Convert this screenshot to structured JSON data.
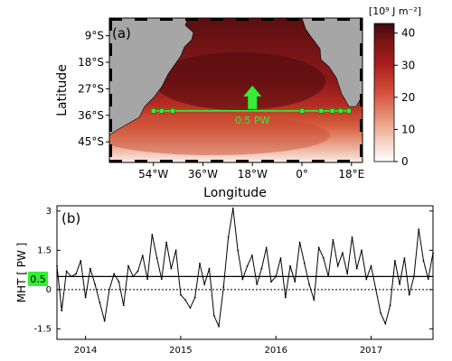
{
  "chart_data": [
    {
      "type": "heatmap",
      "panel_label": "(a)",
      "xlabel": "Longitude",
      "ylabel": "Latitude",
      "x_ticks": [
        "54°W",
        "36°W",
        "18°W",
        "0°",
        "18°E"
      ],
      "x_tick_values": [
        -54,
        -36,
        -18,
        0,
        18
      ],
      "y_ticks": [
        "9°S",
        "18°S",
        "27°S",
        "36°S",
        "45°S"
      ],
      "y_tick_values": [
        -9,
        -18,
        -27,
        -36,
        -45
      ],
      "xlim": [
        -70,
        22
      ],
      "ylim": [
        -52,
        -3
      ],
      "colorbar": {
        "label": "[10⁹ J m⁻²]",
        "ticks": [
          "0",
          "10",
          "20",
          "30",
          "40"
        ],
        "tick_values": [
          0,
          10,
          20,
          30,
          40
        ],
        "range": [
          0,
          43
        ]
      },
      "section": {
        "latitude": -34.5,
        "lon_range": [
          -54,
          18
        ],
        "transport_label": "0.5 PW",
        "arrow_direction": "north",
        "station_lons": [
          -54,
          -51,
          -47,
          0,
          7,
          11,
          14,
          17
        ]
      }
    },
    {
      "type": "line",
      "panel_label": "(b)",
      "ylabel": "MHT [ PW ]",
      "x_ticks": [
        "2014",
        "2015",
        "2016",
        "2017"
      ],
      "x_tick_values": [
        2014,
        2015,
        2016,
        2017
      ],
      "y_ticks": [
        "-1.5",
        "0",
        "1.5",
        "3"
      ],
      "y_tick_values": [
        -1.5,
        0,
        1.5,
        3
      ],
      "xlim": [
        2013.7,
        2017.65
      ],
      "ylim": [
        -1.9,
        3.2
      ],
      "mean_value": 0.5,
      "mean_label": "0.5",
      "zero_line": "dotted",
      "series": [
        {
          "x": [
            2013.7,
            2013.75,
            2013.8,
            2013.85,
            2013.9,
            2013.95,
            2014.0,
            2014.05,
            2014.1,
            2014.15,
            2014.2,
            2014.25,
            2014.3,
            2014.35,
            2014.4,
            2014.45,
            2014.5,
            2014.55,
            2014.6,
            2014.65,
            2014.7,
            2014.75,
            2014.8,
            2014.85,
            2014.9,
            2014.95,
            2015.0,
            2015.05,
            2015.1,
            2015.15,
            2015.2,
            2015.25,
            2015.3,
            2015.35,
            2015.4,
            2015.45,
            2015.5,
            2015.55,
            2015.6,
            2015.65,
            2015.7,
            2015.75,
            2015.8,
            2015.85,
            2015.9,
            2015.95,
            2016.0,
            2016.05,
            2016.1,
            2016.15,
            2016.2,
            2016.25,
            2016.3,
            2016.35,
            2016.4,
            2016.45,
            2016.5,
            2016.55,
            2016.6,
            2016.65,
            2016.7,
            2016.75,
            2016.8,
            2016.85,
            2016.9,
            2016.95,
            2017.0,
            2017.05,
            2017.1,
            2017.15,
            2017.2,
            2017.25,
            2017.3,
            2017.35,
            2017.4,
            2017.45,
            2017.5,
            2017.55,
            2017.6,
            2017.65
          ],
          "values": [
            0.9,
            -0.8,
            0.7,
            0.5,
            0.6,
            1.1,
            -0.3,
            0.8,
            0.2,
            -0.5,
            -1.2,
            0.0,
            0.6,
            0.3,
            -0.6,
            0.9,
            0.5,
            0.7,
            1.3,
            0.4,
            2.1,
            1.2,
            0.4,
            1.8,
            0.8,
            1.5,
            -0.2,
            -0.4,
            -0.7,
            -0.3,
            1.0,
            0.2,
            0.8,
            -1.0,
            -1.4,
            0.1,
            2.0,
            3.1,
            1.5,
            0.4,
            0.9,
            1.3,
            0.2,
            0.8,
            1.6,
            0.3,
            0.5,
            1.2,
            -0.3,
            0.9,
            0.3,
            1.8,
            1.0,
            0.2,
            -0.4,
            1.6,
            1.2,
            0.5,
            1.9,
            0.9,
            1.4,
            0.6,
            2.0,
            0.8,
            1.5,
            0.4,
            0.9,
            0.0,
            -0.9,
            -1.3,
            -0.6,
            1.1,
            0.2,
            1.2,
            -0.2,
            0.5,
            2.3,
            1.1,
            0.4,
            1.4
          ]
        }
      ]
    }
  ]
}
